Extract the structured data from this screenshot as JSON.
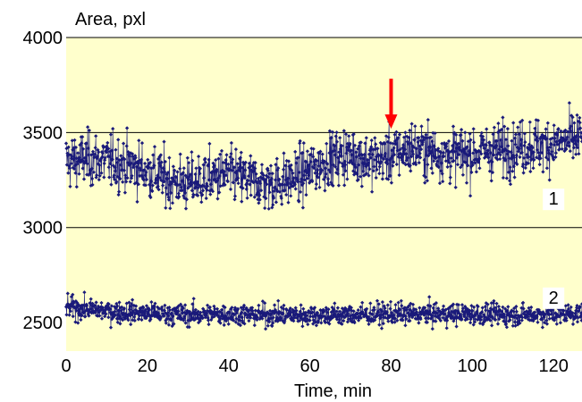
{
  "chart_data": {
    "type": "line",
    "title": "",
    "xlabel": "Time, min",
    "ylabel": "Area, pxl",
    "xlim": [
      0,
      127
    ],
    "ylim": [
      2350,
      4000
    ],
    "x_ticks": [
      0,
      20,
      40,
      60,
      80,
      100,
      120
    ],
    "y_ticks": [
      2500,
      3000,
      3500,
      4000
    ],
    "grid": "horizontal lines at 3000, 3500, 4000",
    "background_color": "#FFFFCC",
    "series_color": "#1A1A7A",
    "gridline_color": "#000000",
    "marker_color": "#FF0000",
    "marker": {
      "type": "arrow-down",
      "x": 80,
      "y": 3520
    },
    "series": [
      {
        "label": "1",
        "label_x": 120,
        "label_y": 3120,
        "points_per_min": 10,
        "x": [
          0,
          5,
          10,
          15,
          20,
          25,
          30,
          35,
          40,
          45,
          50,
          55,
          60,
          65,
          70,
          75,
          80,
          85,
          90,
          95,
          100,
          105,
          110,
          115,
          120,
          125,
          127
        ],
        "values": [
          3350,
          3360,
          3350,
          3330,
          3300,
          3250,
          3230,
          3260,
          3280,
          3250,
          3230,
          3250,
          3300,
          3360,
          3390,
          3350,
          3380,
          3420,
          3400,
          3380,
          3390,
          3410,
          3420,
          3430,
          3440,
          3460,
          3480
        ]
      },
      {
        "label": "2",
        "label_x": 120,
        "label_y": 2600,
        "points_per_min": 10,
        "x": [
          0,
          10,
          20,
          30,
          40,
          50,
          60,
          70,
          80,
          90,
          100,
          110,
          120,
          127
        ],
        "values": [
          2580,
          2560,
          2550,
          2540,
          2545,
          2540,
          2540,
          2540,
          2545,
          2545,
          2545,
          2540,
          2545,
          2550
        ]
      }
    ]
  }
}
